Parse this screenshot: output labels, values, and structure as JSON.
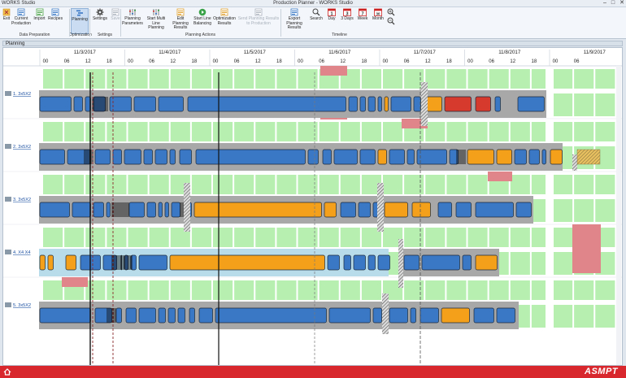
{
  "app_menu": "WORKS Studio",
  "window_title": "Production Planner - WORKS Studio",
  "ribbon": {
    "groups": [
      {
        "label": "Data Preparation",
        "buttons": [
          {
            "label": "Exit",
            "icon": "exit-icon"
          },
          {
            "label": "Current Production",
            "icon": "current-production-icon"
          },
          {
            "label": "Import",
            "icon": "import-icon"
          },
          {
            "label": "Recipes",
            "icon": "recipes-icon"
          }
        ]
      },
      {
        "label": "Optimization",
        "buttons": [
          {
            "label": "Planning",
            "icon": "planning-icon",
            "active": true
          }
        ]
      },
      {
        "label": "Settings",
        "buttons": [
          {
            "label": "Settings",
            "icon": "gear-icon"
          },
          {
            "label": "Save",
            "icon": "save-icon",
            "disabled": true
          }
        ]
      },
      {
        "label": "Planning Actions",
        "buttons": [
          {
            "label": "Planning Parameters",
            "icon": "parameters-icon"
          },
          {
            "label": "Start Multi Line Planning",
            "icon": "multi-line-icon"
          },
          {
            "label": "Edit Planning Results",
            "icon": "edit-results-icon"
          },
          {
            "label": "Start Line Balancing",
            "icon": "play-icon"
          },
          {
            "label": "Optimization Results",
            "icon": "results-icon"
          },
          {
            "label": "Send Planning Results to Production",
            "icon": "send-icon",
            "disabled": true
          }
        ]
      },
      {
        "label": "Timeline",
        "buttons": [
          {
            "label": "Export Planning Results",
            "icon": "export-icon"
          },
          {
            "label": "Search",
            "icon": "search-icon"
          },
          {
            "label": "Day",
            "icon": "calendar-1-icon",
            "num": "1"
          },
          {
            "label": "3 Days",
            "icon": "calendar-3-icon",
            "num": "3"
          },
          {
            "label": "Week",
            "icon": "calendar-7-icon",
            "num": "7"
          },
          {
            "label": "Month",
            "icon": "calendar-30-icon",
            "num": "30"
          },
          {
            "label": "",
            "icon": "zoom-in-icon"
          },
          {
            "label": "",
            "icon": "zoom-out-icon"
          }
        ]
      }
    ]
  },
  "panel_title": "Planning",
  "dates": [
    "11/3/2017",
    "11/4/2017",
    "11/5/2017",
    "11/6/2017",
    "11/7/2017",
    "11/8/2017",
    "11/9/2017"
  ],
  "hours": [
    "00",
    "06",
    "12",
    "18"
  ],
  "lines": [
    "1. 3x5X2",
    "2. 3x5X2",
    "3. 3x5X2",
    "4. X4 X4",
    "5. 3x5X2"
  ],
  "brand": "ASMPT",
  "colors": {
    "blue": "#3a78c6",
    "orange": "#f5a01a",
    "red": "#d63a2c",
    "gray": "#a8a8a8",
    "green": "#b6efb0",
    "pink": "#e0868a",
    "lightblue": "#b8dcea"
  }
}
